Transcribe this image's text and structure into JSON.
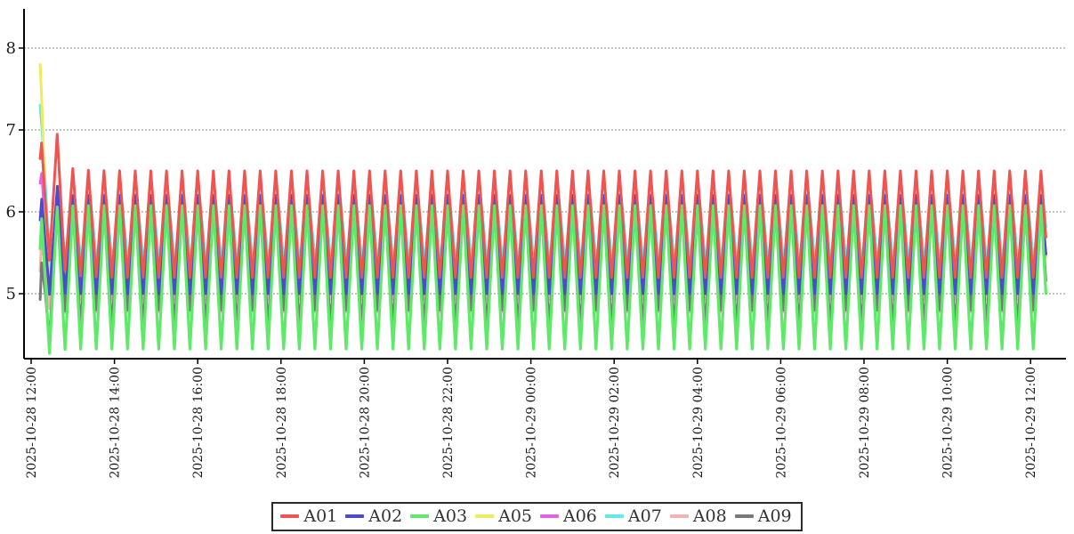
{
  "chart_data": {
    "type": "line",
    "title": "",
    "grid": true,
    "background_color": "#ffffff",
    "axis_color": "#000000",
    "grid_color": "#8a8a8a",
    "text_color": "#1c1c1c",
    "legend": {
      "position": "bottom-center",
      "labels": [
        "A01",
        "A02",
        "A03",
        "A05",
        "A06",
        "A07",
        "A08",
        "A09"
      ]
    },
    "y_axis": {
      "ticks": [
        5,
        6,
        7,
        8
      ],
      "range": [
        4.2,
        8.45
      ]
    },
    "x_axis": {
      "tick_interval_minutes": 120,
      "tick_times_minutes": [
        0,
        120,
        240,
        360,
        480,
        600,
        720,
        840,
        960,
        1080,
        1200,
        1320,
        1440
      ],
      "tick_labels": [
        "2025-10-28 12:00",
        "2025-10-28 14:00",
        "2025-10-28 16:00",
        "2025-10-28 18:00",
        "2025-10-28 20:00",
        "2025-10-28 22:00",
        "2025-10-29 00:00",
        "2025-10-29 02:00",
        "2025-10-29 04:00",
        "2025-10-29 06:00",
        "2025-10-29 08:00",
        "2025-10-29 10:00",
        "2025-10-29 12:00"
      ]
    },
    "time_range_minutes": {
      "start": 13,
      "end": 1462
    },
    "oscillation": {
      "waveform": "triangle",
      "period_minutes": 22.5
    },
    "series": [
      {
        "name": "A01",
        "color": "#f05450",
        "draw_order": 8,
        "width": 3,
        "mean": 5.85,
        "amplitude": 0.65,
        "steady_min": 5.2,
        "steady_max": 6.5,
        "peak_t": 15.0,
        "initial_value": 6.65,
        "settle_tau": 18,
        "alt": 0,
        "bumps": [
          {
            "t": 37.5,
            "dv": 0.35,
            "w": 7
          }
        ]
      },
      {
        "name": "A02",
        "color": "#4b4bcd",
        "draw_order": 6,
        "width": 3,
        "mean": 5.6,
        "amplitude": 0.6,
        "steady_min": 5.0,
        "steady_max": 6.2,
        "peak_t": 15.3,
        "initial_value": 5.9,
        "settle_tau": 12,
        "alt": 0,
        "bumps": [
          {
            "t": 37.5,
            "dv": 0.12,
            "w": 7
          }
        ]
      },
      {
        "name": "A03",
        "color": "#5ee968",
        "draw_order": 7,
        "width": 3.2,
        "mean": 5.2,
        "amplitude": 0.875,
        "steady_min": 4.33,
        "steady_max": 6.08,
        "peak_t": 15.1,
        "initial_value": 5.55,
        "settle_tau": 10,
        "alt": 0,
        "bumps": []
      },
      {
        "name": "A05",
        "color": "#ecec5e",
        "draw_order": 3,
        "width": 3,
        "mean": 5.55,
        "amplitude": 0.62,
        "steady_min": 4.93,
        "steady_max": 6.17,
        "peak_t": 15.4,
        "initial_value": 7.8,
        "settle_tau": 5,
        "alt": 0,
        "bumps": []
      },
      {
        "name": "A06",
        "color": "#e75fe7",
        "draw_order": 1,
        "width": 3,
        "mean": 5.58,
        "amplitude": 0.55,
        "steady_min": 5.03,
        "steady_max": 6.13,
        "peak_t": 15.2,
        "initial_value": 6.35,
        "settle_tau": 9,
        "alt": 0,
        "bumps": []
      },
      {
        "name": "A07",
        "color": "#63e9e9",
        "draw_order": 2,
        "width": 3,
        "mean": 5.67,
        "amplitude": 0.49,
        "steady_min": 5.18,
        "steady_max": 6.16,
        "peak_t": 18.0,
        "initial_value": 7.3,
        "settle_tau": 5,
        "alt": 0,
        "bumps": []
      },
      {
        "name": "A08",
        "color": "#f2b4b2",
        "draw_order": 4,
        "width": 3,
        "mean": 5.53,
        "amplitude": 0.675,
        "steady_min": 4.86,
        "steady_max": 6.21,
        "peak_t": 15.3,
        "initial_value": 5.3,
        "settle_tau": 8,
        "alt": 0.08,
        "bumps": []
      },
      {
        "name": "A09",
        "color": "#787878",
        "draw_order": 5,
        "width": 3,
        "mean": 5.4,
        "amplitude": 0.7,
        "steady_min": 4.7,
        "steady_max": 6.1,
        "peak_t": 15.1,
        "initial_value": 4.9,
        "settle_tau": 8,
        "alt": -0.1,
        "bumps": []
      }
    ]
  }
}
